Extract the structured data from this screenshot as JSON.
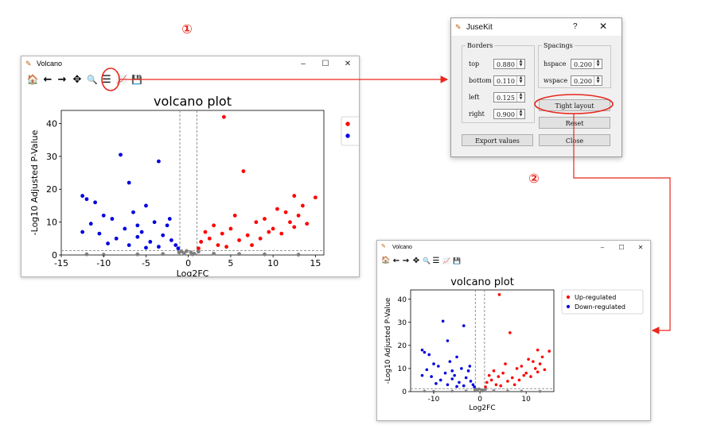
{
  "callouts": [
    "①",
    "②"
  ],
  "window1": {
    "title": "Volcano",
    "controls": [
      "–",
      "☐",
      "✕"
    ],
    "toolbar_icons": [
      "home-icon",
      "back-icon",
      "forward-icon",
      "pan-icon",
      "zoom-icon",
      "configure-subplots-icon",
      "edit-axis-icon",
      "save-icon"
    ],
    "toolbar_glyphs": [
      "🏠",
      "←",
      "→",
      "✥",
      "🔍",
      "☰",
      "📈",
      "💾"
    ]
  },
  "window2": {
    "title": "Volcano",
    "controls": [
      "–",
      "☐",
      "✕"
    ],
    "toolbar_icons": [
      "home-icon",
      "back-icon",
      "forward-icon",
      "pan-icon",
      "zoom-icon",
      "configure-subplots-icon",
      "edit-axis-icon",
      "save-icon"
    ],
    "toolbar_glyphs": [
      "🏠",
      "←",
      "→",
      "✥",
      "🔍",
      "☰",
      "📈",
      "💾"
    ]
  },
  "dialog": {
    "title": "JuseKit",
    "help": "?",
    "close": "✕",
    "borders_label": "Borders",
    "spacings_label": "Spacings",
    "borders": [
      {
        "label": "top",
        "value": "0.880"
      },
      {
        "label": "bottom",
        "value": "0.110"
      },
      {
        "label": "left",
        "value": "0.125"
      },
      {
        "label": "right",
        "value": "0.900"
      }
    ],
    "spacings": [
      {
        "label": "hspace",
        "value": "0.200"
      },
      {
        "label": "wspace",
        "value": "0.200"
      }
    ],
    "tight_layout": "Tight layout",
    "reset": "Reset",
    "export_values": "Export values",
    "close_button": "Close"
  },
  "colors": {
    "up": "#ff0000",
    "down": "#0000e0",
    "ns": "#808080",
    "callout": "#e8281e"
  },
  "chart_data": [
    {
      "type": "scatter",
      "title": "volcano plot",
      "xlabel": "Log2FC",
      "ylabel": "-Log10 Adjusted P-Value",
      "xlim": [
        -15,
        16
      ],
      "ylim": [
        0,
        44
      ],
      "xticks": [
        -15,
        -10,
        -5,
        0,
        5,
        10,
        15
      ],
      "yticks": [
        0,
        10,
        20,
        30,
        40
      ],
      "thresholds": {
        "x": [
          -1,
          1
        ],
        "y": 1.3
      },
      "legend": {
        "position": "right",
        "entries": [
          "",
          ""
        ]
      },
      "series": [
        {
          "name": "Up-regulated",
          "points": [
            [
              4.2,
              42
            ],
            [
              6.5,
              25.5
            ],
            [
              15,
              17.5
            ],
            [
              12.5,
              18
            ],
            [
              13.5,
              15
            ],
            [
              10.5,
              14
            ],
            [
              11.5,
              13
            ],
            [
              9,
              11
            ],
            [
              8,
              10
            ],
            [
              5.5,
              12
            ],
            [
              3,
              9
            ],
            [
              2,
              7
            ],
            [
              4,
              6.5
            ],
            [
              7,
              6
            ],
            [
              10,
              8
            ],
            [
              12,
              10
            ],
            [
              1.5,
              4
            ],
            [
              3.5,
              3
            ],
            [
              6,
              4.5
            ],
            [
              8.5,
              5
            ],
            [
              11,
              6.5
            ],
            [
              13,
              12
            ],
            [
              14,
              9.5
            ],
            [
              5,
              8
            ],
            [
              2.5,
              5
            ],
            [
              1.2,
              2
            ],
            [
              4.5,
              2.5
            ],
            [
              7.5,
              3
            ],
            [
              9.5,
              7
            ],
            [
              12.5,
              8.5
            ]
          ]
        },
        {
          "name": "Down-regulated",
          "points": [
            [
              -8,
              30.5
            ],
            [
              -3.5,
              28.5
            ],
            [
              -7,
              22
            ],
            [
              -12.5,
              18
            ],
            [
              -12,
              17
            ],
            [
              -11,
              16
            ],
            [
              -5,
              15
            ],
            [
              -6.5,
              13
            ],
            [
              -10,
              12
            ],
            [
              -9,
              11
            ],
            [
              -4,
              10
            ],
            [
              -2.5,
              9
            ],
            [
              -11.5,
              9.5
            ],
            [
              -7.5,
              8
            ],
            [
              -5.5,
              7
            ],
            [
              -3,
              6
            ],
            [
              -2,
              4.5
            ],
            [
              -8.5,
              5
            ],
            [
              -10.5,
              6.5
            ],
            [
              -6,
              5.5
            ],
            [
              -4.5,
              4
            ],
            [
              -1.5,
              3
            ],
            [
              -9.5,
              3.5
            ],
            [
              -7,
              3
            ],
            [
              -3.5,
              2.5
            ],
            [
              -1.2,
              2
            ],
            [
              -5,
              2.2
            ],
            [
              -12.5,
              7
            ],
            [
              -2.2,
              11
            ],
            [
              -6,
              9
            ]
          ]
        },
        {
          "points": [
            [
              -0.5,
              0.5
            ],
            [
              0.3,
              0.8
            ],
            [
              -0.8,
              1.1
            ],
            [
              0.7,
              0.4
            ],
            [
              -0.2,
              1.2
            ],
            [
              0.5,
              0.2
            ],
            [
              -3,
              0.3
            ],
            [
              3,
              0.4
            ],
            [
              -6,
              0.2
            ],
            [
              6,
              0.3
            ],
            [
              -10,
              0.1
            ],
            [
              9,
              0.2
            ],
            [
              13,
              0.1
            ],
            [
              -12,
              0.2
            ],
            [
              -1.1,
              0.8
            ],
            [
              1.2,
              1.0
            ]
          ]
        }
      ]
    },
    {
      "type": "scatter",
      "title": "volcano plot",
      "xlabel": "Log2FC",
      "ylabel": "-Log10 Adjusted P-Value",
      "xlim": [
        -15,
        16
      ],
      "ylim": [
        0,
        44
      ],
      "xticks": [
        -10,
        0,
        10
      ],
      "yticks": [
        0,
        10,
        20,
        30,
        40
      ],
      "thresholds": {
        "x": [
          -1,
          1
        ],
        "y": 1.3
      },
      "legend": {
        "position": "right",
        "entries": [
          "Up-regulated",
          "Down-regulated"
        ]
      },
      "series": [
        {
          "name": "Up-regulated",
          "points": [
            [
              4.2,
              42
            ],
            [
              6.5,
              25.5
            ],
            [
              15,
              17.5
            ],
            [
              12.5,
              18
            ],
            [
              13.5,
              15
            ],
            [
              10.5,
              14
            ],
            [
              11.5,
              13
            ],
            [
              9,
              11
            ],
            [
              8,
              10
            ],
            [
              5.5,
              12
            ],
            [
              3,
              9
            ],
            [
              2,
              7
            ],
            [
              4,
              6.5
            ],
            [
              7,
              6
            ],
            [
              10,
              8
            ],
            [
              12,
              10
            ],
            [
              1.5,
              4
            ],
            [
              3.5,
              3
            ],
            [
              6,
              4.5
            ],
            [
              8.5,
              5
            ],
            [
              11,
              6.5
            ],
            [
              13,
              12
            ],
            [
              14,
              9.5
            ],
            [
              5,
              8
            ],
            [
              2.5,
              5
            ],
            [
              1.2,
              2
            ],
            [
              4.5,
              2.5
            ],
            [
              7.5,
              3
            ],
            [
              9.5,
              7
            ],
            [
              12.5,
              8.5
            ]
          ]
        },
        {
          "name": "Down-regulated",
          "points": [
            [
              -8,
              30.5
            ],
            [
              -3.5,
              28.5
            ],
            [
              -7,
              22
            ],
            [
              -12.5,
              18
            ],
            [
              -12,
              17
            ],
            [
              -11,
              16
            ],
            [
              -5,
              15
            ],
            [
              -6.5,
              13
            ],
            [
              -10,
              12
            ],
            [
              -9,
              11
            ],
            [
              -4,
              10
            ],
            [
              -2.5,
              9
            ],
            [
              -11.5,
              9.5
            ],
            [
              -7.5,
              8
            ],
            [
              -5.5,
              7
            ],
            [
              -3,
              6
            ],
            [
              -2,
              4.5
            ],
            [
              -8.5,
              5
            ],
            [
              -10.5,
              6.5
            ],
            [
              -6,
              5.5
            ],
            [
              -4.5,
              4
            ],
            [
              -1.5,
              3
            ],
            [
              -9.5,
              3.5
            ],
            [
              -7,
              3
            ],
            [
              -3.5,
              2.5
            ],
            [
              -1.2,
              2
            ],
            [
              -5,
              2.2
            ],
            [
              -12.5,
              7
            ],
            [
              -2.2,
              11
            ],
            [
              -6,
              9
            ]
          ]
        },
        {
          "points": [
            [
              -0.5,
              0.5
            ],
            [
              0.3,
              0.8
            ],
            [
              -0.8,
              1.1
            ],
            [
              0.7,
              0.4
            ],
            [
              -0.2,
              1.2
            ],
            [
              0.5,
              0.2
            ],
            [
              -3,
              0.3
            ],
            [
              3,
              0.4
            ],
            [
              -6,
              0.2
            ],
            [
              6,
              0.3
            ],
            [
              -10,
              0.1
            ],
            [
              9,
              0.2
            ],
            [
              13,
              0.1
            ],
            [
              -12,
              0.2
            ],
            [
              -1.1,
              0.8
            ],
            [
              1.2,
              1.0
            ]
          ]
        }
      ]
    }
  ]
}
